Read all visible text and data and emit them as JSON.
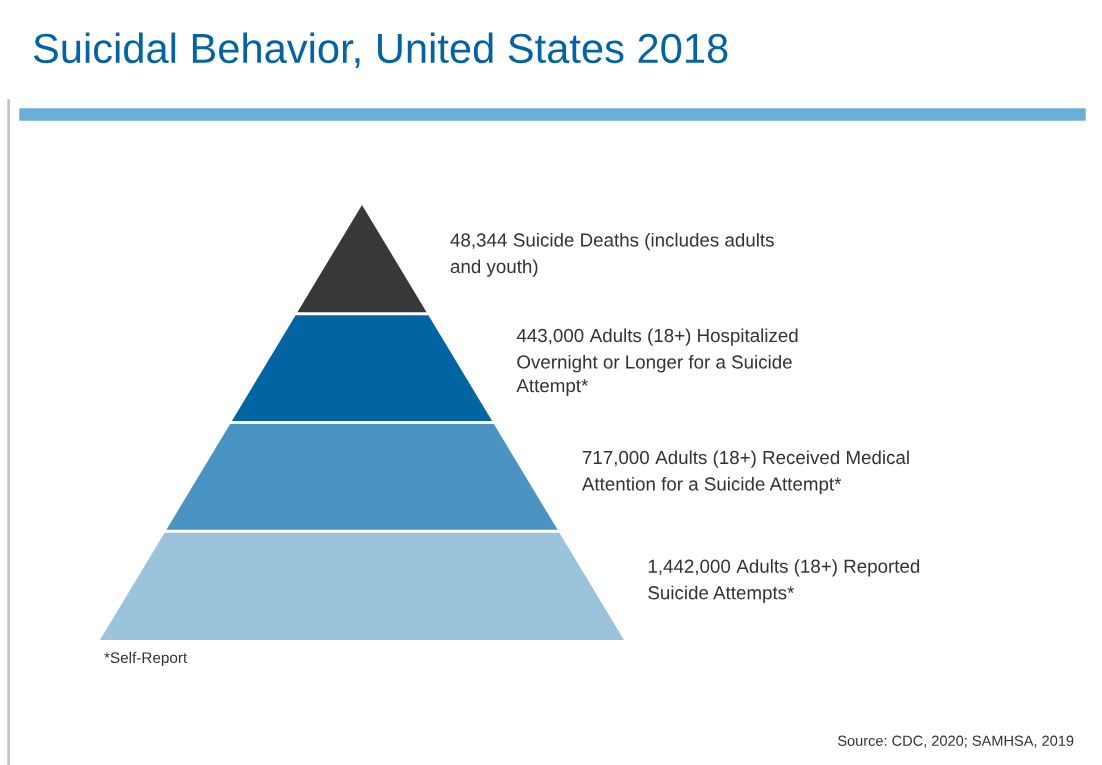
{
  "chart_data": {
    "type": "other",
    "title": "Suicidal Behavior, United States 2018",
    "categories": [
      "Suicide Deaths (includes adults\nand youth)",
      "Adults (18+) Hospitalized\nOvernight or Longer for a Suicide\nAttempt*",
      "Adults (18+) Received Medical\nAttention for a Suicide Attempt*",
      "Adults (18+) Reported\nSuicide Attempts*"
    ],
    "values": [
      48344,
      443000,
      717000,
      1442000
    ],
    "value_labels": [
      "48,344",
      "443,000",
      "717,000",
      "1,442,000"
    ],
    "colors": [
      "#383838",
      "#0264a3",
      "#4a94c3",
      "#9cc3dc"
    ],
    "annotations": [
      "*Self-Report",
      "Source: CDC, 2020; SAMHSA, 2019"
    ]
  }
}
